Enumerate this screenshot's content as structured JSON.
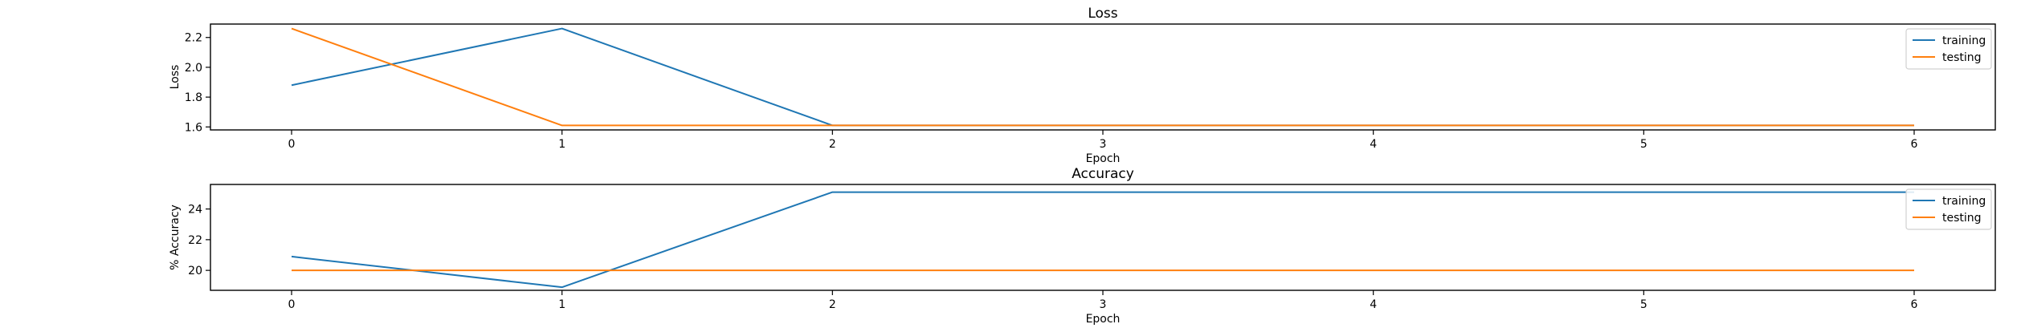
{
  "chart_data": [
    {
      "type": "line",
      "title": "Loss",
      "xlabel": "Epoch",
      "ylabel": "Loss",
      "x": [
        0,
        1,
        2,
        3,
        4,
        5,
        6
      ],
      "xlim": [
        -0.3,
        6.3
      ],
      "ylim": [
        1.58,
        2.29
      ],
      "xticks": [
        0,
        1,
        2,
        3,
        4,
        5,
        6
      ],
      "yticks": [
        1.6,
        1.8,
        2.0,
        2.2
      ],
      "ytick_labels": [
        "1.6",
        "1.8",
        "2.0",
        "2.2"
      ],
      "grid": false,
      "legend_position": "top-right",
      "series": [
        {
          "name": "training",
          "color": "#1f77b4",
          "values": [
            1.88,
            2.26,
            1.61,
            1.61,
            1.61,
            1.61,
            1.61
          ]
        },
        {
          "name": "testing",
          "color": "#ff7f0e",
          "values": [
            2.26,
            1.61,
            1.61,
            1.61,
            1.61,
            1.61,
            1.61
          ]
        }
      ]
    },
    {
      "type": "line",
      "title": "Accuracy",
      "xlabel": "Epoch",
      "ylabel": "% Accuracy",
      "x": [
        0,
        1,
        2,
        3,
        4,
        5,
        6
      ],
      "xlim": [
        -0.3,
        6.3
      ],
      "ylim": [
        18.7,
        25.6
      ],
      "xticks": [
        0,
        1,
        2,
        3,
        4,
        5,
        6
      ],
      "yticks": [
        20,
        22,
        24
      ],
      "ytick_labels": [
        "20",
        "22",
        "24"
      ],
      "grid": false,
      "legend_position": "top-right",
      "series": [
        {
          "name": "training",
          "color": "#1f77b4",
          "values": [
            20.9,
            18.9,
            25.1,
            25.1,
            25.1,
            25.1,
            25.1
          ]
        },
        {
          "name": "testing",
          "color": "#ff7f0e",
          "values": [
            20.0,
            20.0,
            20.0,
            20.0,
            20.0,
            20.0,
            20.0
          ]
        }
      ]
    }
  ]
}
